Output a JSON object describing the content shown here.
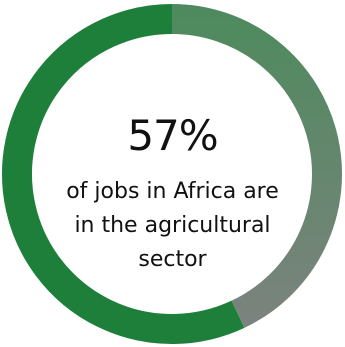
{
  "chart_data": {
    "type": "pie",
    "title": "",
    "value_label": "57%",
    "slices": [
      {
        "label": "of jobs in Africa are in the agricultural sector",
        "value": 57,
        "color": "#1e7f3a"
      },
      {
        "label": "",
        "value": 43,
        "color": "#6b7a6f"
      }
    ],
    "ring_colors": {
      "highlight": "#1e7f3a",
      "remainder_top": "#4f8a5e",
      "remainder_bottom": "#7a837d"
    }
  },
  "caption": {
    "line1": "of jobs in Africa are",
    "line2": "in the agricultural",
    "line3": "sector"
  }
}
